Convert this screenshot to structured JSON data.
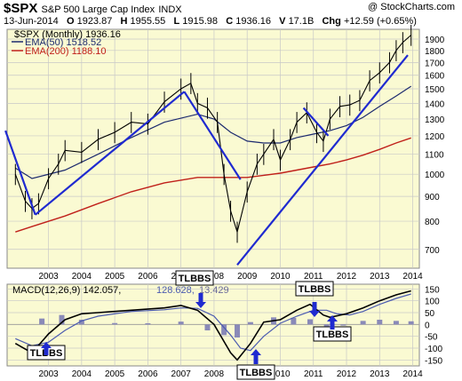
{
  "header": {
    "symbol": "$SPX",
    "name": "S&P 500 Large Cap Index",
    "exchange": "INDX",
    "credit": "@ StockCharts.com"
  },
  "quote": {
    "date": "13-Jun-2014",
    "open_label": "O",
    "open": "1923.87",
    "high_label": "H",
    "high": "1955.55",
    "low_label": "L",
    "low": "1915.98",
    "close_label": "C",
    "close": "1936.16",
    "volume_label": "V",
    "volume": "17.1B",
    "chg_label": "Chg",
    "chg": "+12.59 (+0.65%)"
  },
  "legend": {
    "price": "$SPX (Monthly) 1936.16",
    "ema50": "EMA(50) 1518.52",
    "ema200": "EMA(200) 1188.10"
  },
  "macd_panel": {
    "label": "MACD(12,26,9) 142.057, 128.628, 13.429",
    "label_main": "MACD(12,26,9) 142.057,",
    "label_signal": "128.628,",
    "label_hist": "13.429"
  },
  "annotations": [
    {
      "text": "TLBBS"
    },
    {
      "text": "TLBBS"
    },
    {
      "text": "TLBBS"
    },
    {
      "text": "TLBBS"
    },
    {
      "text": "TLBBS"
    }
  ],
  "colors": {
    "panel_bg": "#fafad2",
    "ema50": "#1c2a6e",
    "ema200": "#c0201a",
    "trendline": "#1f2ad0",
    "macd": "#000000",
    "signal": "#4b5bb0",
    "histogram": "#8a8ab8",
    "grid": "#c8c8c8"
  },
  "chart_data": [
    {
      "type": "line",
      "scale": "log",
      "x_ticks": [
        "2003",
        "2004",
        "2005",
        "2006",
        "2007",
        "2008",
        "2009",
        "2010",
        "2011",
        "2012",
        "2013",
        "2014"
      ],
      "y_ticks": [
        700,
        800,
        900,
        1000,
        1100,
        1200,
        1300,
        1400,
        1500,
        1600,
        1700,
        1800,
        1900
      ],
      "ylim": [
        640,
        1990
      ],
      "series": [
        {
          "name": "$SPX (Monthly)",
          "x": [
            2002.5,
            2002.8,
            2003.0,
            2003.2,
            2003.5,
            2003.8,
            2004.0,
            2004.5,
            2005.0,
            2005.5,
            2006.0,
            2006.5,
            2007.0,
            2007.5,
            2007.8,
            2008.0,
            2008.3,
            2008.6,
            2008.8,
            2009.0,
            2009.2,
            2009.5,
            2009.8,
            2010.0,
            2010.3,
            2010.5,
            2010.8,
            2011.0,
            2011.3,
            2011.6,
            2011.8,
            2012.0,
            2012.3,
            2012.6,
            2012.9,
            2013.2,
            2013.5,
            2013.8,
            2014.0,
            2014.2,
            2014.45
          ],
          "values": [
            1000,
            880,
            850,
            870,
            980,
            1050,
            1120,
            1110,
            1180,
            1220,
            1280,
            1270,
            1410,
            1500,
            1540,
            1400,
            1370,
            1280,
            1000,
            840,
            760,
            920,
            1050,
            1100,
            1180,
            1070,
            1180,
            1280,
            1340,
            1220,
            1170,
            1300,
            1380,
            1390,
            1420,
            1560,
            1620,
            1700,
            1800,
            1870,
            1936
          ]
        },
        {
          "name": "EMA(50)",
          "x": [
            2002.5,
            2003.0,
            2004.0,
            2005.0,
            2006.0,
            2007.0,
            2008.0,
            2008.5,
            2009.0,
            2009.5,
            2010.0,
            2010.5,
            2011.0,
            2011.5,
            2012.0,
            2012.5,
            2013.0,
            2013.5,
            2014.0,
            2014.45
          ],
          "values": [
            1030,
            980,
            1020,
            1100,
            1190,
            1280,
            1330,
            1300,
            1220,
            1170,
            1160,
            1160,
            1190,
            1210,
            1230,
            1260,
            1310,
            1380,
            1450,
            1518.52
          ]
        },
        {
          "name": "EMA(200)",
          "x": [
            2002.5,
            2003.0,
            2004.0,
            2005.0,
            2006.0,
            2007.0,
            2008.0,
            2009.0,
            2009.5,
            2010.0,
            2010.5,
            2011.0,
            2011.5,
            2012.0,
            2012.5,
            2013.0,
            2013.5,
            2014.0,
            2014.45
          ],
          "values": [
            760,
            780,
            820,
            870,
            920,
            960,
            985,
            985,
            985,
            995,
            1005,
            1020,
            1035,
            1050,
            1070,
            1095,
            1125,
            1160,
            1188.1
          ]
        }
      ],
      "trendlines": [
        {
          "x": [
            2002.2,
            2003.1
          ],
          "values": [
            1230,
            825
          ]
        },
        {
          "x": [
            2003.1,
            2007.6
          ],
          "values": [
            825,
            1480
          ]
        },
        {
          "x": [
            2007.6,
            2009.3
          ],
          "values": [
            1480,
            975
          ]
        },
        {
          "x": [
            2009.2,
            2014.35
          ],
          "values": [
            650,
            1760
          ]
        },
        {
          "x": [
            2011.2,
            2011.95
          ],
          "values": [
            1370,
            1200
          ]
        }
      ]
    },
    {
      "type": "line",
      "title": "MACD(12,26,9)",
      "x_ticks": [
        "2003",
        "2004",
        "2005",
        "2006",
        "2007",
        "2008",
        "2009",
        "2010",
        "2011",
        "2012",
        "2013",
        "2014"
      ],
      "y_ticks": [
        150,
        100,
        50,
        0,
        -50,
        -100,
        -150
      ],
      "ylim": [
        -175,
        170
      ],
      "series": [
        {
          "name": "MACD",
          "x": [
            2002.5,
            2003.0,
            2003.5,
            2004.0,
            2004.5,
            2005.0,
            2006.0,
            2007.0,
            2007.5,
            2008.0,
            2008.5,
            2009.0,
            2009.2,
            2009.6,
            2010.0,
            2010.5,
            2011.0,
            2011.4,
            2011.8,
            2012.0,
            2012.5,
            2013.0,
            2013.5,
            2014.0,
            2014.45
          ],
          "values": [
            -80,
            -120,
            -40,
            20,
            45,
            50,
            60,
            70,
            80,
            60,
            0,
            -120,
            -150,
            -80,
            10,
            20,
            60,
            85,
            40,
            30,
            45,
            70,
            100,
            125,
            142.057
          ]
        },
        {
          "name": "Signal",
          "x": [
            2002.5,
            2003.0,
            2003.5,
            2004.0,
            2004.5,
            2005.0,
            2006.0,
            2007.0,
            2007.5,
            2008.0,
            2008.5,
            2009.0,
            2009.3,
            2009.6,
            2010.0,
            2010.5,
            2011.0,
            2011.5,
            2011.9,
            2012.2,
            2012.6,
            2013.0,
            2013.5,
            2014.0,
            2014.45
          ],
          "values": [
            -60,
            -90,
            -75,
            -25,
            15,
            35,
            55,
            62,
            70,
            68,
            35,
            -45,
            -100,
            -110,
            -50,
            5,
            35,
            60,
            60,
            45,
            40,
            55,
            85,
            110,
            128.628
          ]
        },
        {
          "name": "Histogram",
          "x": [
            2003.3,
            2003.9,
            2004.5,
            2005.5,
            2006.5,
            2007.5,
            2008.3,
            2008.8,
            2009.2,
            2009.6,
            2010.3,
            2010.9,
            2011.4,
            2011.9,
            2012.4,
            2013.0,
            2013.5,
            2014.0,
            2014.45
          ],
          "values": [
            25,
            40,
            20,
            6,
            5,
            12,
            -25,
            -45,
            -55,
            10,
            30,
            28,
            22,
            -20,
            -5,
            15,
            20,
            15,
            13.429
          ]
        }
      ]
    }
  ]
}
